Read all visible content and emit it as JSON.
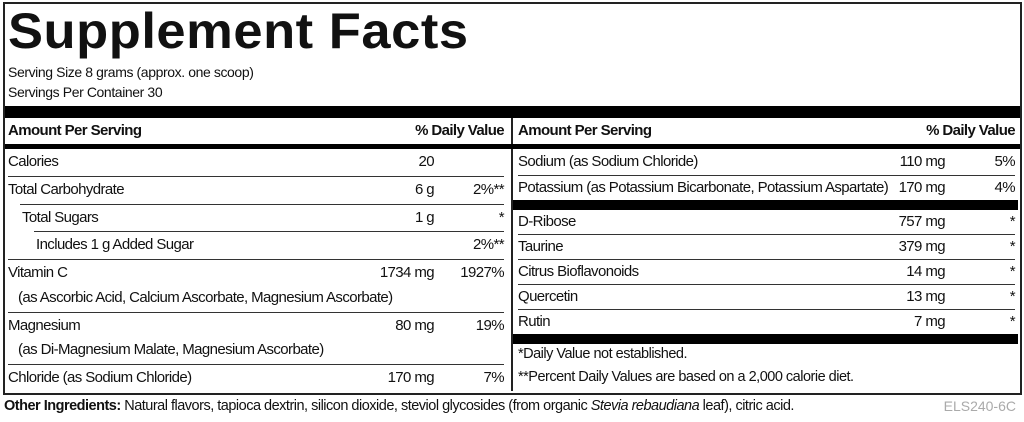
{
  "title": "Supplement Facts",
  "serving_size": "Serving Size 8 grams (approx. one scoop)",
  "servings_per_container": "Servings Per Container 30",
  "header": {
    "amount": "Amount Per Serving",
    "dv": "% Daily Value"
  },
  "left_rows": [
    {
      "name": "Calories",
      "amount": "20",
      "dv": ""
    },
    {
      "name": "Total Carbohydrate",
      "amount": "6 g",
      "dv": "2%**"
    },
    {
      "name": "Total Sugars",
      "amount": "1 g",
      "dv": "*"
    },
    {
      "name": "Includes 1 g Added Sugar",
      "amount": "",
      "dv": "2%**"
    },
    {
      "name": "Vitamin C",
      "amount": "1734 mg",
      "dv": "1927%",
      "sub": "(as Ascorbic Acid, Calcium Ascorbate, Magnesium Ascorbate)"
    },
    {
      "name": "Magnesium",
      "amount": "80 mg",
      "dv": "19%",
      "sub": "(as Di-Magnesium Malate, Magnesium Ascorbate)"
    },
    {
      "name": "Chloride (as Sodium Chloride)",
      "amount": "170 mg",
      "dv": "7%"
    }
  ],
  "right_rows": [
    {
      "name": "Sodium (as Sodium Chloride)",
      "amount": "110 mg",
      "dv": "5%"
    },
    {
      "name": "Potassium (as Potassium Bicarbonate, Potassium Aspartate)",
      "amount": "170 mg",
      "dv": "4%"
    },
    {
      "name": "D-Ribose",
      "amount": "757 mg",
      "dv": "*"
    },
    {
      "name": "Taurine",
      "amount": "379 mg",
      "dv": "*"
    },
    {
      "name": "Citrus Bioflavonoids",
      "amount": "14 mg",
      "dv": "*"
    },
    {
      "name": "Quercetin",
      "amount": "13 mg",
      "dv": "*"
    },
    {
      "name": "Rutin",
      "amount": "7 mg",
      "dv": "*"
    }
  ],
  "footnotes": [
    "*Daily Value not established.",
    "**Percent Daily Values are based on a 2,000 calorie diet."
  ],
  "other_ingredients": {
    "label": "Other Ingredients:",
    "text_before": " Natural flavors, tapioca dextrin, silicon dioxide, steviol glycosides (from organic ",
    "italic": "Stevia rebaudiana",
    "text_after": " leaf), citric acid."
  },
  "code": "ELS240-6C"
}
